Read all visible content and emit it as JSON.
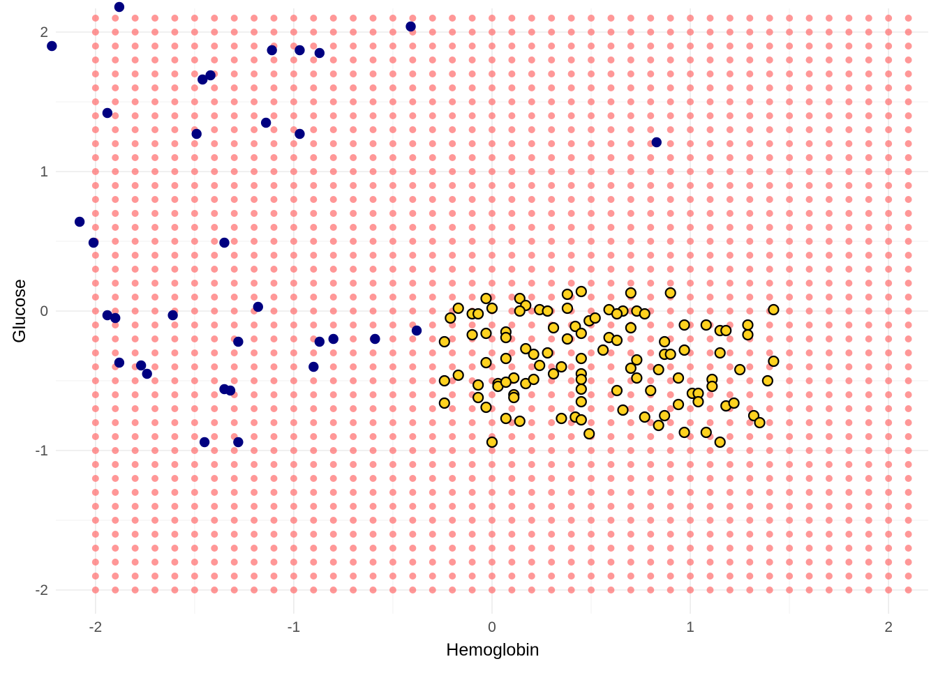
{
  "chart_data": {
    "type": "scatter",
    "xlabel": "Hemoglobin",
    "ylabel": "Glucose",
    "xlim": [
      -2.2,
      2.2
    ],
    "ylim": [
      -2.17,
      2.17
    ],
    "x_ticks": [
      -2,
      -1,
      0,
      1,
      2
    ],
    "x_tick_labels": [
      "-2",
      "-1",
      "0",
      "1",
      "2"
    ],
    "y_ticks": [
      -2,
      -1,
      0,
      1,
      2
    ],
    "y_tick_labels": [
      "-2",
      "-1",
      "0",
      "1",
      "2"
    ],
    "grid": true,
    "legend": "none",
    "background_grid": {
      "x_start": -2.0,
      "x_end": 2.1,
      "x_step": 0.1,
      "y_start": -2.0,
      "y_end": 2.1,
      "y_step": 0.1,
      "color": "#ff6b6b"
    },
    "series": [
      {
        "color": "#000080",
        "points": [
          [
            -2.22,
            1.9
          ],
          [
            -1.88,
            2.18
          ],
          [
            -0.41,
            2.04
          ],
          [
            -1.11,
            1.87
          ],
          [
            -0.97,
            1.87
          ],
          [
            -0.87,
            1.85
          ],
          [
            -1.46,
            1.66
          ],
          [
            -1.42,
            1.69
          ],
          [
            -1.94,
            1.42
          ],
          [
            -1.14,
            1.35
          ],
          [
            -1.49,
            1.27
          ],
          [
            -0.97,
            1.27
          ],
          [
            0.83,
            1.21
          ],
          [
            -2.08,
            0.64
          ],
          [
            -2.01,
            0.49
          ],
          [
            -1.35,
            0.49
          ],
          [
            -1.18,
            0.03
          ],
          [
            -1.94,
            -0.03
          ],
          [
            -1.9,
            -0.05
          ],
          [
            -1.61,
            -0.03
          ],
          [
            -0.38,
            -0.14
          ],
          [
            -1.28,
            -0.22
          ],
          [
            -0.87,
            -0.22
          ],
          [
            -0.8,
            -0.2
          ],
          [
            -0.59,
            -0.2
          ],
          [
            -1.88,
            -0.37
          ],
          [
            -1.77,
            -0.39
          ],
          [
            -1.74,
            -0.45
          ],
          [
            -0.9,
            -0.4
          ],
          [
            -1.35,
            -0.56
          ],
          [
            -1.32,
            -0.57
          ],
          [
            -1.45,
            -0.94
          ],
          [
            -1.28,
            -0.94
          ]
        ]
      },
      {
        "color": "#ffd21f",
        "points": [
          [
            -0.03,
            0.09
          ],
          [
            0.14,
            0.09
          ],
          [
            0.38,
            0.12
          ],
          [
            0.45,
            0.14
          ],
          [
            0.7,
            0.13
          ],
          [
            0.9,
            0.13
          ],
          [
            -0.17,
            0.02
          ],
          [
            0.0,
            0.02
          ],
          [
            0.17,
            0.04
          ],
          [
            0.24,
            0.01
          ],
          [
            0.38,
            0.02
          ],
          [
            0.59,
            0.01
          ],
          [
            0.66,
            0.0
          ],
          [
            0.73,
            0.0
          ],
          [
            1.42,
            0.01
          ],
          [
            -0.21,
            -0.05
          ],
          [
            -0.1,
            -0.02
          ],
          [
            -0.07,
            -0.02
          ],
          [
            0.14,
            0.0
          ],
          [
            0.28,
            0.0
          ],
          [
            0.63,
            -0.02
          ],
          [
            0.77,
            -0.02
          ],
          [
            0.49,
            -0.07
          ],
          [
            0.52,
            -0.05
          ],
          [
            0.7,
            -0.12
          ],
          [
            0.97,
            -0.1
          ],
          [
            1.08,
            -0.1
          ],
          [
            1.15,
            -0.14
          ],
          [
            1.18,
            -0.14
          ],
          [
            1.29,
            -0.1
          ],
          [
            -0.1,
            -0.17
          ],
          [
            -0.03,
            -0.16
          ],
          [
            0.07,
            -0.15
          ],
          [
            0.31,
            -0.12
          ],
          [
            0.42,
            -0.11
          ],
          [
            0.45,
            -0.16
          ],
          [
            1.29,
            -0.17
          ],
          [
            -0.24,
            -0.22
          ],
          [
            0.07,
            -0.19
          ],
          [
            0.38,
            -0.2
          ],
          [
            0.59,
            -0.19
          ],
          [
            0.63,
            -0.21
          ],
          [
            0.87,
            -0.22
          ],
          [
            0.17,
            -0.27
          ],
          [
            0.21,
            -0.31
          ],
          [
            0.28,
            -0.3
          ],
          [
            0.56,
            -0.28
          ],
          [
            0.87,
            -0.31
          ],
          [
            0.9,
            -0.31
          ],
          [
            0.97,
            -0.28
          ],
          [
            1.15,
            -0.3
          ],
          [
            0.07,
            -0.34
          ],
          [
            0.45,
            -0.34
          ],
          [
            0.73,
            -0.35
          ],
          [
            1.42,
            -0.36
          ],
          [
            -0.03,
            -0.37
          ],
          [
            0.24,
            -0.39
          ],
          [
            0.35,
            -0.4
          ],
          [
            0.7,
            -0.41
          ],
          [
            0.84,
            -0.42
          ],
          [
            1.25,
            -0.42
          ],
          [
            -0.24,
            -0.5
          ],
          [
            -0.17,
            -0.46
          ],
          [
            0.11,
            -0.48
          ],
          [
            0.17,
            -0.52
          ],
          [
            0.21,
            -0.49
          ],
          [
            0.31,
            -0.45
          ],
          [
            0.45,
            -0.45
          ],
          [
            0.73,
            -0.48
          ],
          [
            0.94,
            -0.48
          ],
          [
            1.11,
            -0.49
          ],
          [
            1.39,
            -0.5
          ],
          [
            -0.07,
            -0.53
          ],
          [
            0.03,
            -0.52
          ],
          [
            0.03,
            -0.54
          ],
          [
            0.07,
            -0.51
          ],
          [
            0.45,
            -0.49
          ],
          [
            0.45,
            -0.56
          ],
          [
            0.63,
            -0.57
          ],
          [
            0.8,
            -0.57
          ],
          [
            1.01,
            -0.59
          ],
          [
            1.04,
            -0.59
          ],
          [
            1.11,
            -0.54
          ],
          [
            -0.24,
            -0.66
          ],
          [
            -0.07,
            -0.62
          ],
          [
            -0.03,
            -0.69
          ],
          [
            0.11,
            -0.6
          ],
          [
            0.11,
            -0.62
          ],
          [
            0.45,
            -0.65
          ],
          [
            0.66,
            -0.71
          ],
          [
            0.94,
            -0.67
          ],
          [
            1.04,
            -0.65
          ],
          [
            1.18,
            -0.68
          ],
          [
            1.22,
            -0.66
          ],
          [
            0.07,
            -0.77
          ],
          [
            0.14,
            -0.79
          ],
          [
            0.35,
            -0.77
          ],
          [
            0.42,
            -0.76
          ],
          [
            0.45,
            -0.78
          ],
          [
            0.77,
            -0.76
          ],
          [
            0.84,
            -0.82
          ],
          [
            0.87,
            -0.75
          ],
          [
            1.32,
            -0.75
          ],
          [
            1.35,
            -0.8
          ],
          [
            0.49,
            -0.88
          ],
          [
            0.97,
            -0.87
          ],
          [
            1.08,
            -0.87
          ],
          [
            0.0,
            -0.94
          ],
          [
            1.15,
            -0.94
          ]
        ]
      }
    ]
  }
}
